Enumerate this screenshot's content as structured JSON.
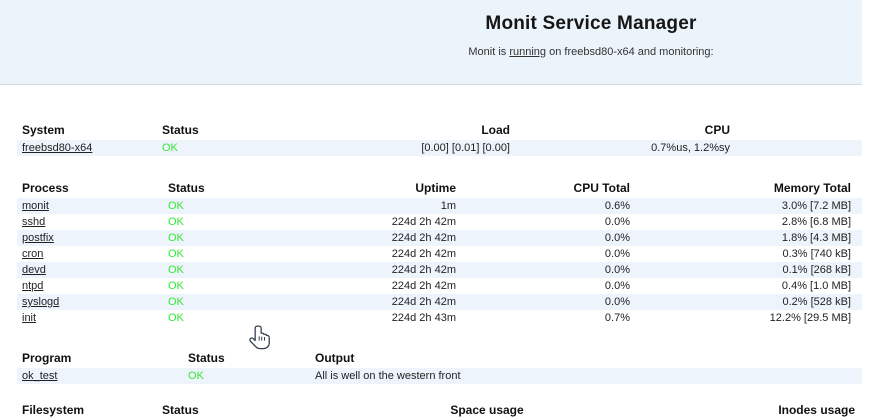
{
  "app": {
    "name": "Monit Service Manager"
  },
  "header": {
    "title": "Monit Service Manager",
    "subtitle_prefix": "Monit is ",
    "subtitle_link": "running",
    "subtitle_suffix": " on freebsd80-x64 and monitoring:"
  },
  "tables": {
    "system": {
      "headers": [
        "System",
        "Status",
        "Load",
        "CPU"
      ],
      "rows": [
        [
          "freebsd80-x64",
          "OK",
          "[0.00] [0.01] [0.00]",
          "0.7%us, 1.2%sy"
        ]
      ]
    },
    "process": {
      "headers": [
        "Process",
        "Status",
        "Uptime",
        "CPU Total",
        "Memory Total"
      ],
      "rows": [
        [
          "monit",
          "OK",
          "1m",
          "0.6%",
          "3.0% [7.2 MB]"
        ],
        [
          "sshd",
          "OK",
          "224d 2h 42m",
          "0.0%",
          "2.8% [6.8 MB]"
        ],
        [
          "postfix",
          "OK",
          "224d 2h 42m",
          "0.0%",
          "1.8% [4.3 MB]"
        ],
        [
          "cron",
          "OK",
          "224d 2h 42m",
          "0.0%",
          "0.3% [740 kB]"
        ],
        [
          "devd",
          "OK",
          "224d 2h 42m",
          "0.0%",
          "0.1% [268 kB]"
        ],
        [
          "ntpd",
          "OK",
          "224d 2h 42m",
          "0.0%",
          "0.4% [1.0 MB]"
        ],
        [
          "syslogd",
          "OK",
          "224d 2h 42m",
          "0.0%",
          "0.2% [528 kB]"
        ],
        [
          "init",
          "OK",
          "224d 2h 43m",
          "0.7%",
          "12.2% [29.5 MB]"
        ]
      ]
    },
    "program": {
      "headers": [
        "Program",
        "Status",
        "Output"
      ],
      "rows": [
        [
          "ok_test",
          "OK",
          "All is well on the western front"
        ]
      ]
    },
    "filesystem": {
      "headers": [
        "Filesystem",
        "Status",
        "Space usage",
        "Inodes usage"
      ],
      "rows": []
    }
  },
  "colors": {
    "header_band": "#EBF3FB",
    "row_stripe": "#EDF4FC",
    "status_ok": "#33E833",
    "text": "#222222"
  },
  "cursor": {
    "type": "hand-pointer"
  }
}
